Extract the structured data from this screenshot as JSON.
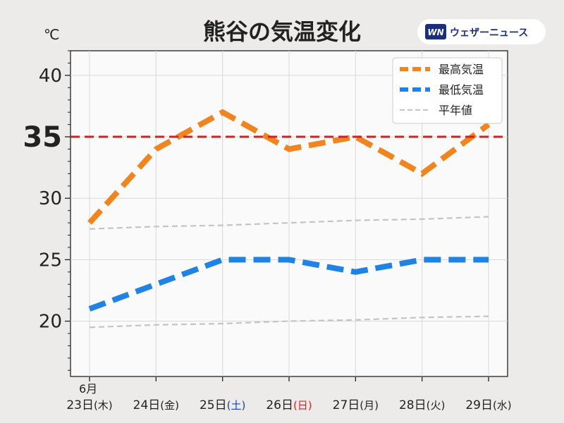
{
  "logo": {
    "mark": "WN",
    "text": "ウェザーニュース"
  },
  "chart_data": {
    "type": "line",
    "title": "熊谷の気温変化",
    "ylabel": "℃",
    "ylim": [
      15.5,
      42
    ],
    "yticks": [
      20,
      25,
      30,
      35,
      40
    ],
    "month_label": "6月",
    "categories": [
      {
        "day": "23日",
        "wd": "(木)",
        "color": "#222222"
      },
      {
        "day": "24日",
        "wd": "(金)",
        "color": "#222222"
      },
      {
        "day": "25日",
        "wd": "(土)",
        "color": "#1c3fb0"
      },
      {
        "day": "26日",
        "wd": "(日)",
        "color": "#e02020"
      },
      {
        "day": "27日",
        "wd": "(月)",
        "color": "#222222"
      },
      {
        "day": "28日",
        "wd": "(火)",
        "color": "#222222"
      },
      {
        "day": "29日",
        "wd": "(水)",
        "color": "#222222"
      }
    ],
    "series": [
      {
        "name": "最高気温",
        "color": "#f0841e",
        "style": "dashed-thick",
        "values": [
          28,
          34,
          37,
          34,
          35,
          32,
          36
        ]
      },
      {
        "name": "最低気温",
        "color": "#1f82e6",
        "style": "dashed-thick",
        "values": [
          21,
          23,
          25,
          25,
          24,
          25,
          25
        ]
      },
      {
        "name": "平年値",
        "color": "#c4c4c4",
        "style": "dashed-thin",
        "values": [
          27.5,
          27.7,
          27.8,
          28.0,
          28.2,
          28.3,
          28.5
        ]
      },
      {
        "name": "",
        "color": "#c4c4c4",
        "style": "dashed-thin",
        "values": [
          19.5,
          19.7,
          19.8,
          20.0,
          20.1,
          20.3,
          20.4
        ]
      }
    ],
    "reference_line": {
      "value": 35,
      "label": "35",
      "color": "#d42020"
    },
    "grid": true,
    "legend_position": "top-right"
  }
}
